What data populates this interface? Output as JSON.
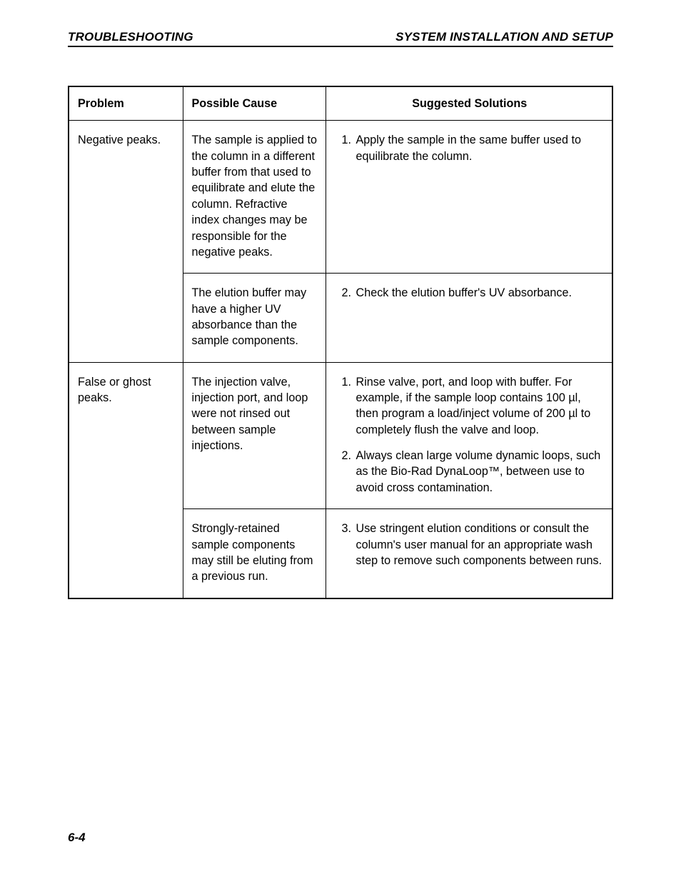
{
  "header": {
    "left": "TROUBLESHOOTING",
    "right": "SYSTEM INSTALLATION AND SETUP"
  },
  "table": {
    "columns": {
      "problem": "Problem",
      "cause": "Possible Cause",
      "solutions": "Suggested Solutions"
    },
    "rows": [
      {
        "problem": "Negative peaks.",
        "cause": "The sample is applied to the column in a different buffer from that used to equilibrate and elute the column. Refractive index changes may be responsible for the negative peaks.",
        "sol_start": 1,
        "solutions": [
          "Apply the sample in the same buffer used to equilibrate the column."
        ]
      },
      {
        "problem": "",
        "cause": "The elution buffer may have a higher UV absorbance than the sample components.",
        "sol_start": 2,
        "solutions": [
          "Check the elution buffer's UV absorbance."
        ]
      },
      {
        "problem": "False or ghost peaks.",
        "cause": "The injection valve, injection port, and loop were not rinsed out between sample injections.",
        "sol_start": 1,
        "solutions": [
          "Rinse valve, port, and loop with buffer. For example, if the sample loop contains 100 µl, then program a load/inject volume of 200 µl to completely flush the valve and loop.",
          "Always clean large volume dynamic loops, such as the Bio-Rad DynaLoop™, between use to avoid cross contamination."
        ]
      },
      {
        "problem": "",
        "cause": "Strongly-retained sample components may still be eluting from a previous run.",
        "sol_start": 3,
        "solutions": [
          "Use stringent elution conditions or consult the column's user manual for an appropriate wash step to remove such components between runs."
        ]
      }
    ]
  },
  "footer": "6-4"
}
